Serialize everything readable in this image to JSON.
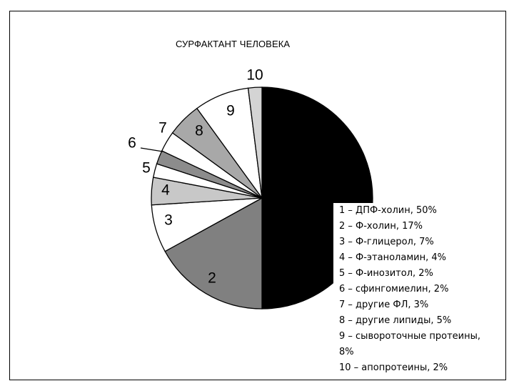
{
  "chart_data": {
    "type": "pie",
    "title": "СУРФАКТАНТ ЧЕЛОВЕКА",
    "slices": [
      {
        "label": "1",
        "legend": "1 – ДПФ-холин, 50%",
        "value": 50,
        "color": "#000000",
        "show_label": false
      },
      {
        "label": "2",
        "legend": "2 – Ф-холин, 17%",
        "value": 17,
        "color": "#808080",
        "show_label": true
      },
      {
        "label": "3",
        "legend": "3 – Ф-глицерол, 7%",
        "value": 7,
        "color": "#ffffff",
        "show_label": true
      },
      {
        "label": "4",
        "legend": "4 – Ф-этаноламин, 4%",
        "value": 4,
        "color": "#c8c8c8",
        "show_label": true
      },
      {
        "label": "5",
        "legend": "5 – Ф-инозитол, 2%",
        "value": 2,
        "color": "#ffffff",
        "show_label": true
      },
      {
        "label": "6",
        "legend": "6 – сфингомиелин, 2%",
        "value": 2,
        "color": "#8c8c8c",
        "show_label": true
      },
      {
        "label": "7",
        "legend": "7 – другие ФЛ, 3%",
        "value": 3,
        "color": "#ffffff",
        "show_label": true
      },
      {
        "label": "8",
        "legend": "8 – другие липиды, 5%",
        "value": 5,
        "color": "#a8a8a8",
        "show_label": true
      },
      {
        "label": "9",
        "legend": "9 – сывороточные протеины, 8%",
        "value": 8,
        "color": "#ffffff",
        "show_label": true
      },
      {
        "label": "10",
        "legend": "10 – апопротеины, 2%",
        "value": 2,
        "color": "#d4d4d4",
        "show_label": true
      }
    ]
  }
}
